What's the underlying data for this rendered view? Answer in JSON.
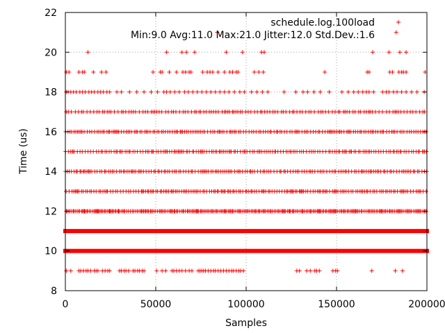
{
  "chart_data": {
    "type": "scatter",
    "title": "",
    "xlabel": "Samples",
    "ylabel": "Time (us)",
    "xlim": [
      0,
      200000
    ],
    "ylim": [
      8,
      22
    ],
    "x_ticks": [
      0,
      50000,
      100000,
      150000,
      200000
    ],
    "x_tick_labels": [
      "0",
      "50000",
      "100000",
      "150000",
      "200000"
    ],
    "y_ticks": [
      8,
      10,
      12,
      14,
      16,
      18,
      20,
      22
    ],
    "y_tick_labels": [
      "8",
      "10",
      "12",
      "14",
      "16",
      "18",
      "20",
      "22"
    ],
    "grid": true,
    "legend_position": "top-right",
    "series": [
      {
        "name": "schedule.log.100load",
        "color": "#ff0000",
        "marker": "plus",
        "annotation": "Min:9.0 Avg:11.0 Max:21.0 Jitter:12.0 Std.Dev.:1.6",
        "levels": [
          {
            "y": 22,
            "x": []
          },
          {
            "y": 21,
            "x": [
              84000,
              183000
            ]
          },
          {
            "y": 20,
            "x": [
              12500,
              56000,
              64500,
              67000,
              71500,
              89000,
              98000,
              108500,
              110000,
              170000,
              179000,
              185000,
              188500
            ]
          },
          {
            "y": 19,
            "x": [
              500,
              2000,
              7500,
              9500,
              10500,
              15500,
              20000,
              22500,
              48500,
              52500,
              53500,
              57500,
              61500,
              65000,
              66500,
              68500,
              69500,
              76000,
              78500,
              80000,
              81500,
              84500,
              88000,
              91000,
              92500,
              94500,
              95500,
              104500,
              107000,
              109500,
              143500,
              167000,
              168000,
              179500,
              181000,
              184500,
              186000,
              187000,
              188500,
              199000
            ]
          },
          {
            "y": 18,
            "x": [
              500,
              1500,
              3000,
              4500,
              6000,
              8000,
              9500,
              11000,
              13000,
              14500,
              16000,
              18000,
              19500,
              21000,
              23000,
              24500,
              28500,
              31000,
              35500,
              39500,
              43500,
              47500,
              51000,
              54500,
              56000,
              58000,
              60500,
              63000,
              66000,
              68000,
              70500,
              73000,
              75500,
              78000,
              80500,
              83000,
              85500,
              88000,
              90500,
              93500,
              96500,
              99000,
              103000,
              106000,
              109000,
              112000,
              121000,
              127500,
              131500,
              134000,
              137500,
              141000,
              146000,
              153000,
              156500,
              159500,
              162000,
              164500,
              166500,
              168000,
              170500,
              175500,
              177500,
              179000,
              181500,
              183500,
              186000,
              188500,
              191500,
              194500,
              198500
            ]
          },
          {
            "y": 17,
            "x": []
          },
          {
            "y": 16,
            "x": []
          },
          {
            "y": 15,
            "x": []
          },
          {
            "y": 14,
            "x": []
          },
          {
            "y": 13,
            "x": []
          },
          {
            "y": 12,
            "x": []
          },
          {
            "y": 11,
            "x": []
          },
          {
            "y": 10,
            "x": []
          },
          {
            "y": 9,
            "x": [
              500,
              3000,
              7500,
              8500,
              10000,
              11500,
              12500,
              14000,
              16000,
              17000,
              18000,
              20500,
              22000,
              23500,
              24500,
              30000,
              31000,
              32500,
              33500,
              35000,
              37500,
              38500,
              40000,
              41000,
              42500,
              43500,
              50500,
              53500,
              55500,
              59000,
              60000,
              61500,
              63000,
              64500,
              66500,
              68500,
              70000,
              73500,
              74500,
              75500,
              76500,
              77500,
              79000,
              80500,
              82000,
              83000,
              84500,
              86000,
              87500,
              89000,
              90500,
              92000,
              93000,
              94500,
              96000,
              97000,
              98500,
              128000,
              129500,
              133500,
              135500,
              138000,
              139000,
              140500,
              148000,
              149500,
              150500,
              169500,
              182500,
              186500
            ]
          }
        ],
        "dense_bands": [
          {
            "y": 17,
            "density": "medium",
            "x_range": [
              0,
              199000
            ]
          },
          {
            "y": 16,
            "density": "high",
            "x_range": [
              0,
              200000
            ]
          },
          {
            "y": 15,
            "density": "high",
            "x_range": [
              0,
              200000
            ]
          },
          {
            "y": 14,
            "density": "high",
            "x_range": [
              0,
              200000
            ]
          },
          {
            "y": 13,
            "density": "high",
            "x_range": [
              0,
              200000
            ]
          },
          {
            "y": 12,
            "density": "very-high",
            "x_range": [
              0,
              200000
            ]
          },
          {
            "y": 11,
            "density": "solid",
            "x_range": [
              0,
              200000
            ]
          },
          {
            "y": 10,
            "density": "solid",
            "x_range": [
              0,
              200000
            ]
          }
        ]
      }
    ]
  }
}
